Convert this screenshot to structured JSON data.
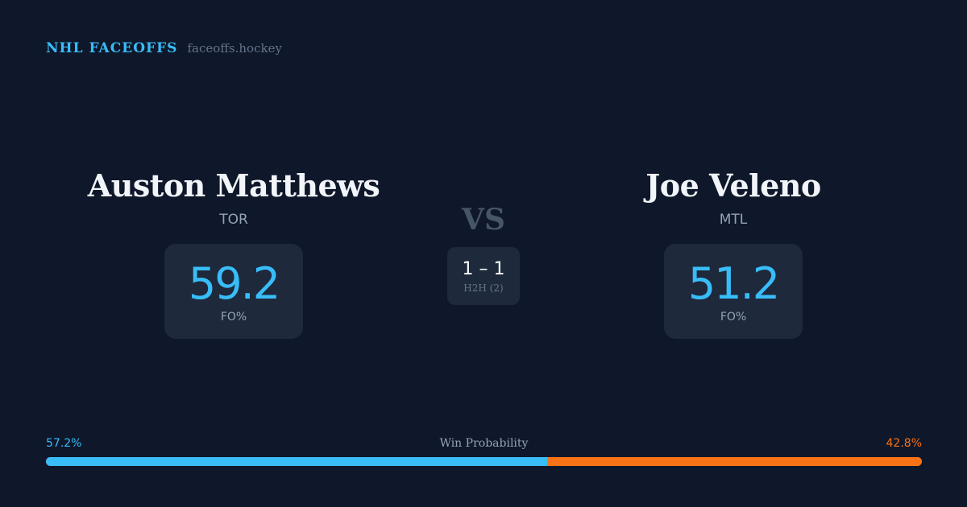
{
  "brand": {
    "name": "NHL FACEOFFS",
    "url": "faceoffs.hockey"
  },
  "players": [
    {
      "name": "Auston Matthews",
      "team": "TOR",
      "stat_value": "59.2",
      "stat_label": "FO%"
    },
    {
      "name": "Joe Veleno",
      "team": "MTL",
      "stat_value": "51.2",
      "stat_label": "FO%"
    }
  ],
  "versus": {
    "label": "VS",
    "h2h_score": "1 – 1",
    "h2h_label": "H2H (2)"
  },
  "win_probability": {
    "title": "Win Probability",
    "left_label": "57.2%",
    "right_label": "42.8%",
    "left_percent": 57.2,
    "left_color": "#38bdf8",
    "right_color": "#f97316"
  }
}
